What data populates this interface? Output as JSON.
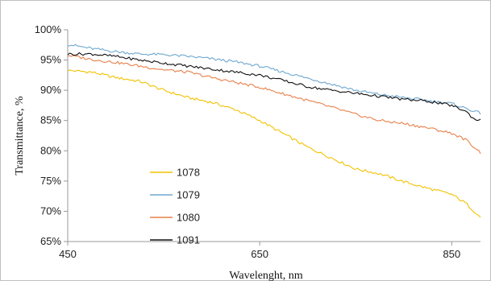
{
  "chart_data": {
    "type": "line",
    "title": "",
    "xlabel": "Wavelenght, nm",
    "ylabel": "Transmittance, %",
    "xlim": [
      450,
      880
    ],
    "ylim": [
      65,
      100
    ],
    "x_ticks": [
      450,
      650,
      850
    ],
    "x_tick_labels": [
      "450",
      "650",
      "850"
    ],
    "y_ticks": [
      65,
      70,
      75,
      80,
      85,
      90,
      95,
      100
    ],
    "y_tick_labels": [
      "65%",
      "70%",
      "75%",
      "80%",
      "85%",
      "90%",
      "95%",
      "100%"
    ],
    "grid": false,
    "legend_position": "center-left",
    "series": [
      {
        "name": "1078",
        "color": "#f2c200",
        "x": [
          450,
          475,
          500,
          525,
          550,
          575,
          600,
          625,
          650,
          675,
          700,
          725,
          750,
          775,
          800,
          825,
          850,
          865,
          880
        ],
        "y": [
          93.3,
          93.0,
          92.1,
          91.5,
          90.0,
          88.8,
          88.0,
          86.8,
          85.0,
          82.8,
          80.6,
          78.8,
          77.0,
          76.2,
          74.9,
          73.8,
          72.8,
          71.3,
          69.0
        ]
      },
      {
        "name": "1079",
        "color": "#6fa8d0",
        "x": [
          450,
          475,
          500,
          525,
          550,
          575,
          600,
          625,
          650,
          675,
          700,
          725,
          750,
          775,
          800,
          825,
          850,
          865,
          880
        ],
        "y": [
          97.6,
          96.9,
          96.4,
          96.0,
          95.9,
          95.6,
          95.2,
          94.7,
          94.0,
          93.0,
          92.0,
          91.0,
          90.0,
          89.3,
          88.8,
          88.3,
          87.8,
          87.0,
          86.2
        ]
      },
      {
        "name": "1080",
        "color": "#e8804a",
        "x": [
          450,
          475,
          500,
          525,
          550,
          575,
          600,
          625,
          650,
          675,
          700,
          725,
          750,
          775,
          800,
          825,
          850,
          865,
          880
        ],
        "y": [
          95.8,
          95.1,
          94.6,
          94.0,
          93.4,
          93.0,
          92.1,
          91.3,
          90.5,
          89.4,
          88.3,
          87.2,
          86.0,
          85.0,
          84.5,
          83.8,
          82.9,
          81.8,
          79.7
        ]
      },
      {
        "name": "1091",
        "color": "#111111",
        "x": [
          450,
          475,
          500,
          525,
          550,
          575,
          600,
          625,
          650,
          675,
          700,
          725,
          750,
          775,
          800,
          825,
          850,
          865,
          875,
          880
        ],
        "y": [
          96.0,
          96.0,
          95.6,
          95.0,
          94.5,
          94.0,
          93.5,
          93.0,
          92.5,
          91.6,
          90.6,
          90.0,
          89.5,
          89.0,
          88.5,
          88.2,
          87.5,
          86.5,
          85.0,
          85.3
        ]
      }
    ]
  }
}
